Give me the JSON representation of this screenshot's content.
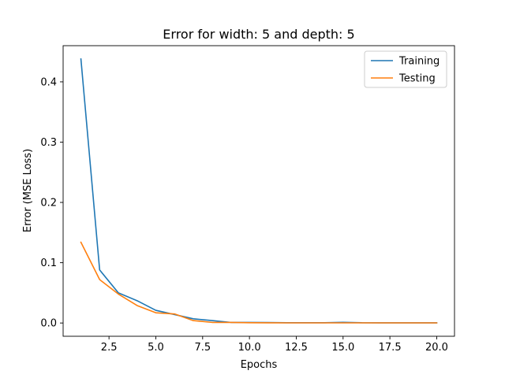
{
  "chart_data": {
    "type": "line",
    "title": "Error for width: 5 and depth: 5",
    "xlabel": "Epochs",
    "ylabel": "Error (MSE Loss)",
    "xlim": [
      0.05,
      20.95
    ],
    "ylim": [
      -0.022,
      0.46
    ],
    "x_ticks": [
      2.5,
      5.0,
      7.5,
      10.0,
      12.5,
      15.0,
      17.5,
      20.0
    ],
    "x_tick_labels": [
      "2.5",
      "5.0",
      "7.5",
      "10.0",
      "12.5",
      "15.0",
      "17.5",
      "20.0"
    ],
    "y_ticks": [
      0.0,
      0.1,
      0.2,
      0.3,
      0.4
    ],
    "y_tick_labels": [
      "0.0",
      "0.1",
      "0.2",
      "0.3",
      "0.4"
    ],
    "grid": false,
    "legend_position": "top-right",
    "x": [
      1,
      2,
      3,
      4,
      5,
      6,
      7,
      8,
      9,
      10,
      11,
      12,
      13,
      14,
      15,
      16,
      17,
      18,
      19,
      20
    ],
    "series": [
      {
        "name": "Training",
        "color": "#1f77b4",
        "values": [
          0.438,
          0.088,
          0.05,
          0.037,
          0.021,
          0.014,
          0.007,
          0.004,
          0.001,
          0.001,
          0.0008,
          0.0005,
          0.0004,
          0.0004,
          0.0012,
          0.0004,
          0.0003,
          0.0003,
          0.0003,
          0.0003
        ]
      },
      {
        "name": "Testing",
        "color": "#ff7f0e",
        "values": [
          0.134,
          0.072,
          0.048,
          0.029,
          0.017,
          0.015,
          0.004,
          0.001,
          0.001,
          0.0005,
          0.0003,
          0.0002,
          0.0002,
          0.0002,
          0.0002,
          0.0002,
          0.0002,
          0.0002,
          0.0002,
          0.0002
        ]
      }
    ]
  }
}
